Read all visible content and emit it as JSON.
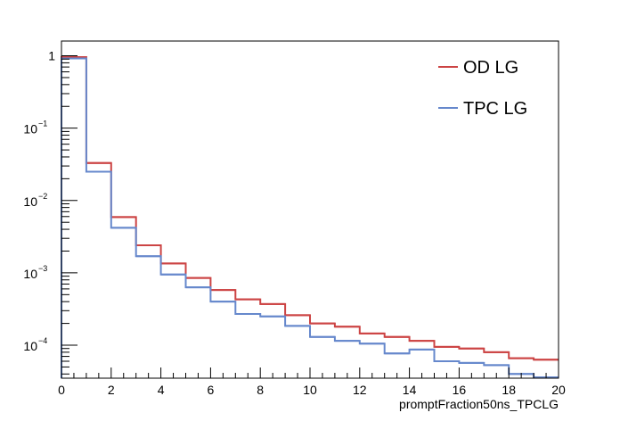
{
  "chart_data": {
    "type": "line",
    "title": "",
    "xlabel": "promptFraction50ns_TPCLG",
    "ylabel": "",
    "xlim": [
      0,
      20
    ],
    "ylim": [
      3.5e-05,
      1.6
    ],
    "yscale": "log",
    "grid": false,
    "legend_position": "top-right",
    "x_tick_labels": [
      "0",
      "2",
      "4",
      "6",
      "8",
      "10",
      "12",
      "14",
      "16",
      "18",
      "20"
    ],
    "y_tick_labels": [
      {
        "value": 1,
        "base": "1",
        "exp": ""
      },
      {
        "value": 0.1,
        "base": "10",
        "exp": "−1"
      },
      {
        "value": 0.01,
        "base": "10",
        "exp": "−2"
      },
      {
        "value": 0.001,
        "base": "10",
        "exp": "−3"
      },
      {
        "value": 0.0001,
        "base": "10",
        "exp": "−4"
      }
    ],
    "bin_edges": [
      0,
      1,
      2,
      3,
      4,
      5,
      6,
      7,
      8,
      9,
      10,
      11,
      12,
      13,
      14,
      15,
      16,
      17,
      18,
      19,
      20
    ],
    "series": [
      {
        "name": "OD LG",
        "color": "#cc4444",
        "values": [
          0.96,
          0.033,
          0.0059,
          0.0024,
          0.00135,
          0.00085,
          0.00058,
          0.00043,
          0.00037,
          0.00026,
          0.0002,
          0.00018,
          0.000145,
          0.00013,
          0.000115,
          9.5e-05,
          9e-05,
          8e-05,
          6.6e-05,
          6.3e-05
        ]
      },
      {
        "name": "TPC LG",
        "color": "#6688cc",
        "values": [
          0.92,
          0.025,
          0.0042,
          0.0017,
          0.00095,
          0.00063,
          0.0004,
          0.00027,
          0.00025,
          0.000185,
          0.00013,
          0.000115,
          0.000105,
          7.7e-05,
          8.7e-05,
          6e-05,
          5.7e-05,
          5.3e-05,
          4e-05,
          3.6e-05
        ]
      }
    ]
  }
}
